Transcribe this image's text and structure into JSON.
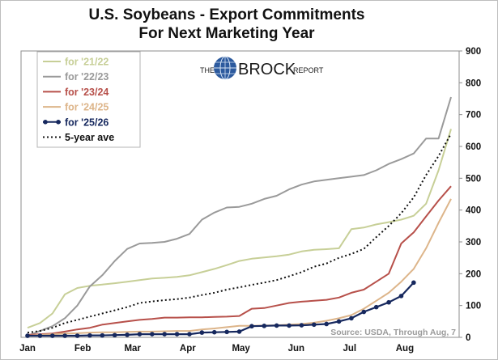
{
  "chart_data": {
    "type": "line",
    "title": [
      "U.S. Soybeans - Export Commitments",
      "For Next Marketing Year"
    ],
    "brand": {
      "pre": "THE",
      "main": "BROCK",
      "post": "REPORT"
    },
    "source": "Source: USDA, Through Aug, 7",
    "x_ticks": [
      "Jan",
      "Feb",
      "Mar",
      "Apr",
      "May",
      "Jun",
      "Jul",
      "Aug"
    ],
    "x_tick_pos": [
      1,
      5.43,
      9.43,
      13.86,
      18.14,
      22.57,
      26.86,
      31.29
    ],
    "xlim": [
      1,
      35
    ],
    "ylim": [
      0,
      900
    ],
    "y_ticks": [
      0,
      100,
      200,
      300,
      400,
      500,
      600,
      700,
      800,
      900
    ],
    "y_axis_side": "right",
    "legend_position": "top-left",
    "series": [
      {
        "name": "for '21/22",
        "color": "#c7cf97",
        "dashed": false,
        "markers": false,
        "x": [
          1,
          2,
          3,
          4,
          5,
          6,
          7,
          8,
          9,
          10,
          11,
          12,
          13,
          14,
          15,
          16,
          17,
          18,
          19,
          20,
          21,
          22,
          23,
          24,
          25,
          26,
          27,
          28,
          29,
          30,
          31,
          32,
          33,
          34,
          35
        ],
        "y": [
          30,
          45,
          75,
          135,
          155,
          162,
          166,
          170,
          175,
          180,
          185,
          187,
          190,
          195,
          205,
          215,
          227,
          240,
          247,
          251,
          255,
          260,
          270,
          275,
          277,
          280,
          340,
          345,
          355,
          362,
          370,
          382,
          420,
          525,
          655
        ]
      },
      {
        "name": "for '22/23",
        "color": "#9a9a9a",
        "dashed": false,
        "markers": false,
        "x": [
          1,
          2,
          3,
          4,
          5,
          6,
          7,
          8,
          9,
          10,
          11,
          12,
          13,
          14,
          15,
          16,
          17,
          18,
          19,
          20,
          21,
          22,
          23,
          24,
          25,
          26,
          27,
          28,
          29,
          30,
          31,
          32,
          33,
          34,
          35
        ],
        "y": [
          5,
          20,
          35,
          60,
          100,
          160,
          195,
          240,
          278,
          295,
          297,
          300,
          310,
          325,
          370,
          392,
          408,
          410,
          420,
          435,
          445,
          465,
          480,
          490,
          495,
          500,
          505,
          510,
          525,
          545,
          560,
          578,
          625,
          625,
          755
        ]
      },
      {
        "name": "for '23/24",
        "color": "#b7504a",
        "dashed": false,
        "markers": false,
        "x": [
          1,
          2,
          3,
          4,
          5,
          6,
          7,
          8,
          9,
          10,
          11,
          12,
          13,
          14,
          15,
          16,
          17,
          18,
          19,
          20,
          21,
          22,
          23,
          24,
          25,
          26,
          27,
          28,
          29,
          30,
          31,
          32,
          33,
          34,
          35
        ],
        "y": [
          8,
          10,
          12,
          18,
          25,
          30,
          40,
          45,
          50,
          55,
          58,
          62,
          62,
          63,
          63,
          64,
          65,
          67,
          90,
          92,
          100,
          108,
          112,
          115,
          118,
          125,
          140,
          150,
          175,
          200,
          295,
          330,
          380,
          430,
          475
        ]
      },
      {
        "name": "for '24/25",
        "color": "#ddb58a",
        "dashed": false,
        "markers": false,
        "x": [
          1,
          2,
          3,
          4,
          5,
          6,
          7,
          8,
          9,
          10,
          11,
          12,
          13,
          14,
          15,
          16,
          17,
          18,
          19,
          20,
          21,
          22,
          23,
          24,
          25,
          26,
          27,
          28,
          29,
          30,
          31,
          32,
          33,
          34,
          35
        ],
        "y": [
          5,
          8,
          10,
          12,
          13,
          15,
          16,
          16,
          17,
          18,
          18,
          19,
          20,
          20,
          25,
          28,
          32,
          36,
          36,
          37,
          38,
          40,
          42,
          46,
          52,
          60,
          70,
          90,
          115,
          140,
          175,
          215,
          280,
          360,
          435
        ]
      },
      {
        "name": "for '25/26",
        "color": "#16285e",
        "dashed": false,
        "markers": true,
        "x": [
          1,
          2,
          3,
          4,
          5,
          6,
          7,
          8,
          9,
          10,
          11,
          12,
          13,
          14,
          15,
          16,
          17,
          18,
          19,
          20,
          21,
          22,
          23,
          24,
          25,
          26,
          27,
          28,
          29,
          30,
          31,
          32
        ],
        "y": [
          5,
          5,
          5,
          5,
          5,
          6,
          6,
          7,
          8,
          10,
          10,
          10,
          10,
          10,
          15,
          16,
          17,
          18,
          35,
          36,
          37,
          37,
          38,
          40,
          42,
          50,
          60,
          80,
          95,
          110,
          130,
          172
        ]
      },
      {
        "name": "5-year ave",
        "color": "#111111",
        "dashed": true,
        "markers": false,
        "x": [
          1,
          2,
          3,
          4,
          5,
          6,
          7,
          8,
          9,
          10,
          11,
          12,
          13,
          14,
          15,
          16,
          17,
          18,
          19,
          20,
          21,
          22,
          23,
          24,
          25,
          26,
          27,
          28,
          29,
          30,
          31,
          32,
          33,
          34,
          35
        ],
        "y": [
          15,
          20,
          30,
          45,
          55,
          65,
          75,
          85,
          95,
          108,
          113,
          117,
          120,
          125,
          133,
          140,
          150,
          157,
          165,
          172,
          180,
          192,
          205,
          222,
          232,
          250,
          262,
          278,
          315,
          350,
          390,
          440,
          510,
          570,
          640
        ]
      }
    ]
  }
}
